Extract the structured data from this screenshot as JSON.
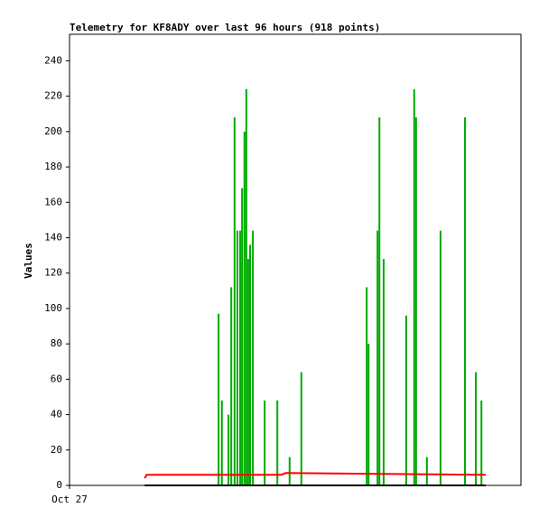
{
  "chart_data": {
    "type": "line",
    "title": "Telemetry for KF8ADY over last 96 hours (918 points)",
    "y_label": "Values",
    "xlim": [
      0,
      96
    ],
    "xticks": [
      {
        "value": 0,
        "label": "Oct 27"
      }
    ],
    "ylim": [
      0,
      255
    ],
    "yticks": [
      0,
      20,
      40,
      60,
      80,
      100,
      120,
      140,
      160,
      180,
      200,
      220,
      240
    ],
    "series": [
      {
        "color": "#00aa00",
        "x": [
          31.7,
          32.4,
          33.8,
          34.4,
          35.1,
          35.7,
          36.3,
          36.7,
          37.2,
          37.6,
          38.0,
          38.4,
          39.0,
          41.5,
          44.2,
          46.8,
          49.3,
          63.2,
          63.6,
          65.5,
          65.9,
          66.8,
          71.6,
          73.3,
          73.7,
          76.0,
          78.9,
          84.1,
          86.4,
          87.6
        ],
        "values": [
          97,
          48,
          40,
          112,
          208,
          144,
          144,
          168,
          200,
          224,
          128,
          136,
          144,
          48,
          48,
          16,
          64,
          112,
          80,
          144,
          208,
          128,
          96,
          224,
          208,
          16,
          144,
          208,
          64,
          48
        ]
      },
      {
        "color": "#ff0000",
        "x": [
          16.0,
          16.4,
          45.0,
          46.0,
          88.5
        ],
        "values": [
          4,
          6,
          6,
          7,
          6
        ]
      },
      {
        "color": "#000000",
        "x": [
          16.0,
          88.5
        ],
        "values": [
          0,
          0
        ]
      }
    ]
  }
}
